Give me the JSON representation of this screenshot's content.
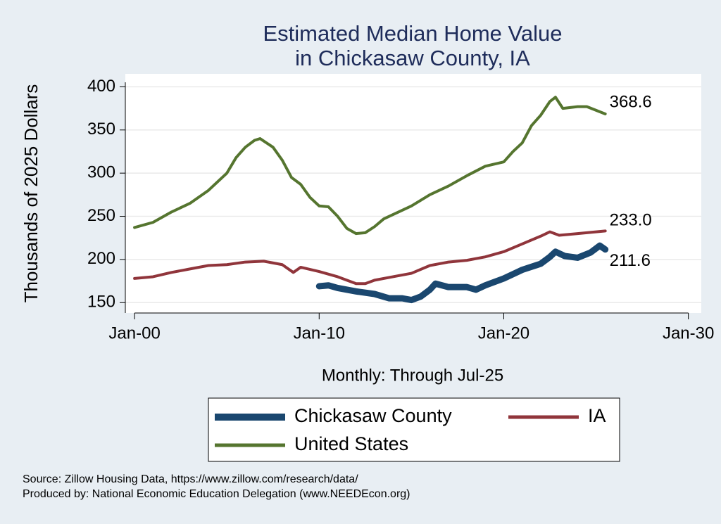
{
  "chart_data": {
    "type": "line",
    "title": [
      "Estimated Median Home Value",
      "in Chickasaw County, IA"
    ],
    "y_label": "Thousands of 2025 Dollars",
    "x_label": "Monthly: Through Jul-25",
    "xlim": [
      1999.5,
      2030.7
    ],
    "xticks": [
      {
        "value": 2000,
        "label": "Jan-00"
      },
      {
        "value": 2010,
        "label": "Jan-10"
      },
      {
        "value": 2020,
        "label": "Jan-20"
      },
      {
        "value": 2030,
        "label": "Jan-30"
      }
    ],
    "ylim": [
      138,
      415
    ],
    "yticks": [
      150,
      200,
      250,
      300,
      350,
      400
    ],
    "grid": true,
    "legend": "bottom",
    "series": [
      {
        "name": "Chickasaw County",
        "color": "#1a476f",
        "x": [
          2010,
          2010.5,
          2011,
          2012,
          2013,
          2013.8,
          2014.5,
          2015,
          2015.5,
          2016,
          2016.3,
          2017,
          2018,
          2018.5,
          2019,
          2020,
          2021,
          2022,
          2022.5,
          2022.8,
          2023.3,
          2024,
          2024.7,
          2025.2,
          2025.5
        ],
        "values": [
          169,
          170,
          167,
          163,
          160,
          155,
          155,
          153,
          157,
          165,
          172,
          168,
          168,
          165,
          170,
          178,
          188,
          195,
          203,
          209,
          204,
          202,
          208,
          216,
          211.6
        ],
        "value_labels": [
          null,
          null,
          null,
          null,
          null,
          null,
          null,
          null,
          null,
          null,
          null,
          null,
          null,
          null,
          null,
          null,
          null,
          null,
          null,
          null,
          null,
          null,
          null,
          null,
          "211.6"
        ]
      },
      {
        "name": "IA",
        "color": "#90353b",
        "x": [
          2000,
          2001,
          2002,
          2003,
          2004,
          2005,
          2006,
          2007,
          2008,
          2008.6,
          2009,
          2010,
          2011,
          2012,
          2012.5,
          2013,
          2014,
          2015,
          2016,
          2017,
          2018,
          2019,
          2020,
          2021,
          2022,
          2022.5,
          2023,
          2024,
          2025,
          2025.5
        ],
        "values": [
          178,
          180,
          185,
          189,
          193,
          194,
          197,
          198,
          194,
          185,
          191,
          186,
          180,
          172,
          172,
          176,
          180,
          184,
          193,
          197,
          199,
          203,
          209,
          218,
          227,
          232,
          228,
          230,
          232,
          233
        ],
        "value_labels": [
          null,
          null,
          null,
          null,
          null,
          null,
          null,
          null,
          null,
          null,
          null,
          null,
          null,
          null,
          null,
          null,
          null,
          null,
          null,
          null,
          null,
          null,
          null,
          null,
          null,
          null,
          null,
          null,
          null,
          "233.0"
        ]
      },
      {
        "name": "United States",
        "color": "#55752f",
        "x": [
          2000,
          2001,
          2002,
          2003,
          2004,
          2005,
          2005.5,
          2006,
          2006.5,
          2006.8,
          2007.5,
          2008,
          2008.5,
          2009,
          2009.5,
          2010,
          2010.5,
          2011,
          2011.5,
          2012,
          2012.5,
          2013,
          2013.5,
          2014,
          2015,
          2016,
          2017,
          2018,
          2019,
          2020,
          2020.5,
          2021,
          2021.5,
          2022,
          2022.5,
          2022.8,
          2023.2,
          2024,
          2024.5,
          2025.5
        ],
        "values": [
          237,
          243,
          255,
          265,
          280,
          300,
          318,
          330,
          338,
          340,
          330,
          315,
          295,
          287,
          272,
          262,
          261,
          250,
          236,
          230,
          231,
          238,
          247,
          252,
          262,
          275,
          285,
          297,
          308,
          313,
          325,
          335,
          355,
          367,
          383,
          388,
          375,
          377,
          377,
          368.6
        ],
        "value_labels": [
          null,
          null,
          null,
          null,
          null,
          null,
          null,
          null,
          null,
          null,
          null,
          null,
          null,
          null,
          null,
          null,
          null,
          null,
          null,
          null,
          null,
          null,
          null,
          null,
          null,
          null,
          null,
          null,
          null,
          null,
          null,
          null,
          null,
          null,
          null,
          null,
          null,
          null,
          null,
          "368.6"
        ]
      }
    ],
    "notes": [
      "Source: Zillow Housing Data, https://www.zillow.com/research/data/",
      "Produced by: National Economic Education Delegation (www.NEEDEcon.org)"
    ]
  }
}
